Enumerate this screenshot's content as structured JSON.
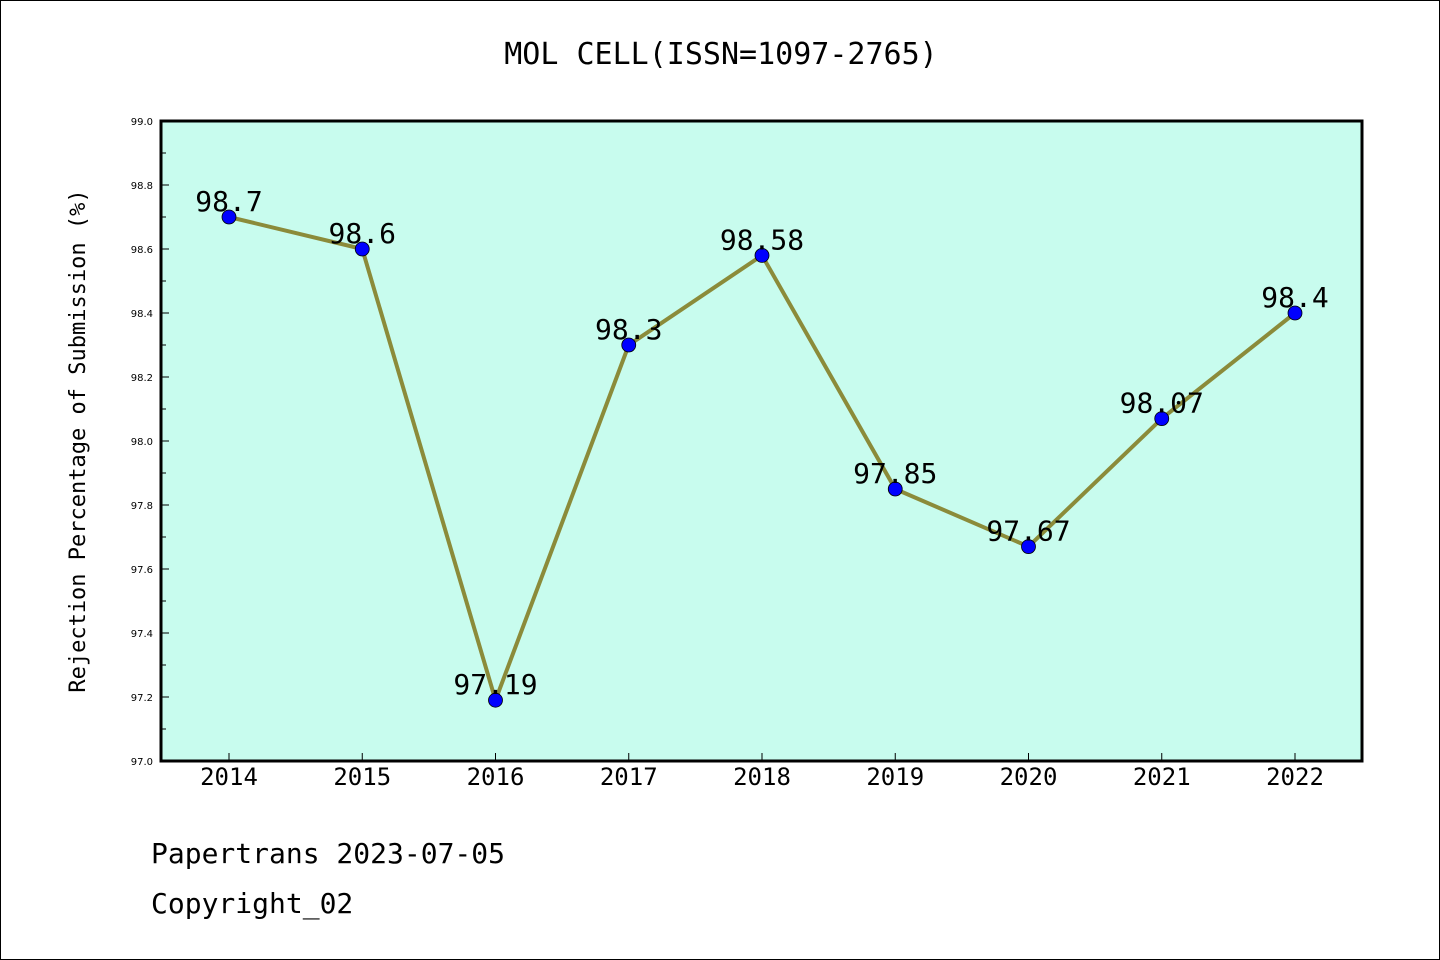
{
  "chart_data": {
    "type": "line",
    "title": "MOL CELL(ISSN=1097-2765)",
    "ylabel": "Rejection Percentage of Submission (%)",
    "xlabel": "",
    "categories": [
      "2014",
      "2015",
      "2016",
      "2017",
      "2018",
      "2019",
      "2020",
      "2021",
      "2022"
    ],
    "series": [
      {
        "values": [
          98.7,
          98.6,
          97.19,
          98.3,
          98.58,
          97.85,
          97.67,
          98.07,
          98.4
        ],
        "labels": [
          "98.7",
          "98.6",
          "97.19",
          "98.3",
          "98.58",
          "97.85",
          "97.67",
          "98.07",
          "98.4"
        ]
      }
    ],
    "ylim": [
      97.0,
      99.0
    ],
    "yticks": [
      "97.0",
      "97.2",
      "97.4",
      "97.6",
      "97.8",
      "98.0",
      "98.2",
      "98.4",
      "98.6",
      "98.8",
      "99.0"
    ],
    "grid": false,
    "colors": {
      "plot_background": "#c8fcee",
      "line": "#8b8b3a",
      "marker": "#0000ff"
    }
  },
  "footer": {
    "line1": "Papertrans 2023-07-05",
    "line2": "Copyright_02"
  }
}
